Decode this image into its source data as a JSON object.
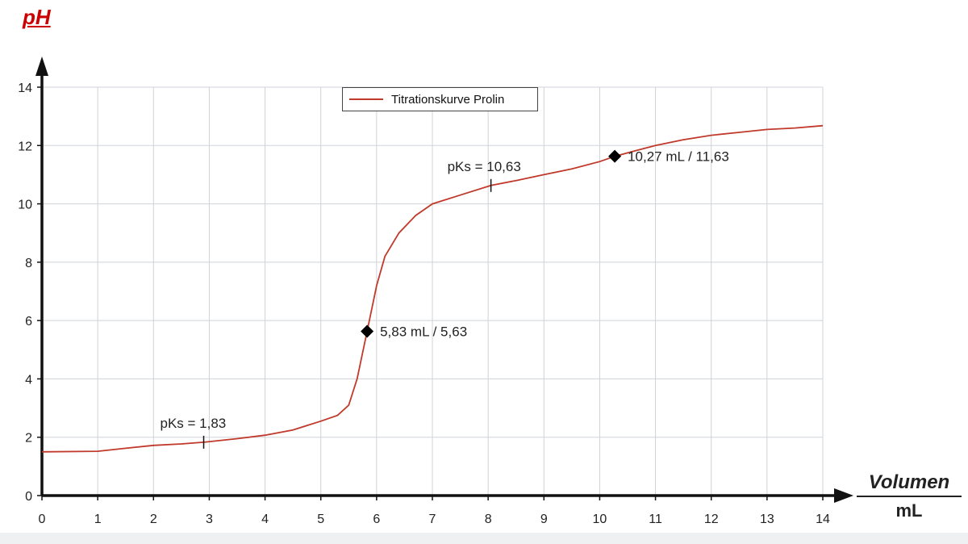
{
  "chart_data": {
    "type": "line",
    "ylabel": "pH",
    "xlabel": "Volumen",
    "xunit": "mL",
    "xlim": [
      0,
      14
    ],
    "ylim": [
      0,
      14
    ],
    "xticks": [
      0,
      1,
      2,
      3,
      4,
      5,
      6,
      7,
      8,
      9,
      10,
      11,
      12,
      13,
      14
    ],
    "yticks": [
      0,
      2,
      4,
      6,
      8,
      10,
      12,
      14
    ],
    "grid": true,
    "legend_position": "top-center",
    "series": [
      {
        "name": "Titrationskurve Prolin",
        "color": "#c0392b",
        "points": [
          [
            0,
            1.5
          ],
          [
            1,
            1.52
          ],
          [
            1.5,
            1.62
          ],
          [
            2,
            1.72
          ],
          [
            2.5,
            1.77
          ],
          [
            2.9,
            1.83
          ],
          [
            3.5,
            1.95
          ],
          [
            4,
            2.07
          ],
          [
            4.5,
            2.25
          ],
          [
            5,
            2.55
          ],
          [
            5.3,
            2.75
          ],
          [
            5.5,
            3.1
          ],
          [
            5.65,
            4.0
          ],
          [
            5.83,
            5.63
          ],
          [
            6.0,
            7.2
          ],
          [
            6.15,
            8.2
          ],
          [
            6.4,
            9.0
          ],
          [
            6.7,
            9.6
          ],
          [
            7,
            10.0
          ],
          [
            7.5,
            10.3
          ],
          [
            8.05,
            10.63
          ],
          [
            8.5,
            10.8
          ],
          [
            9,
            11.0
          ],
          [
            9.5,
            11.2
          ],
          [
            10,
            11.45
          ],
          [
            10.27,
            11.63
          ],
          [
            10.6,
            11.8
          ],
          [
            11,
            12.0
          ],
          [
            11.5,
            12.2
          ],
          [
            12,
            12.35
          ],
          [
            12.5,
            12.45
          ],
          [
            13,
            12.55
          ],
          [
            13.5,
            12.6
          ],
          [
            14,
            12.68
          ]
        ]
      }
    ],
    "markers": [
      {
        "x": 5.83,
        "y": 5.63,
        "label": "5,83 mL / 5,63"
      },
      {
        "x": 10.27,
        "y": 11.63,
        "label": "10,27 mL / 11,63"
      }
    ],
    "ticks_on_curve": [
      {
        "x": 2.9,
        "y": 1.83,
        "label": "pKs = 1,83"
      },
      {
        "x": 8.05,
        "y": 10.63,
        "label": "pKs = 10,63"
      }
    ]
  }
}
